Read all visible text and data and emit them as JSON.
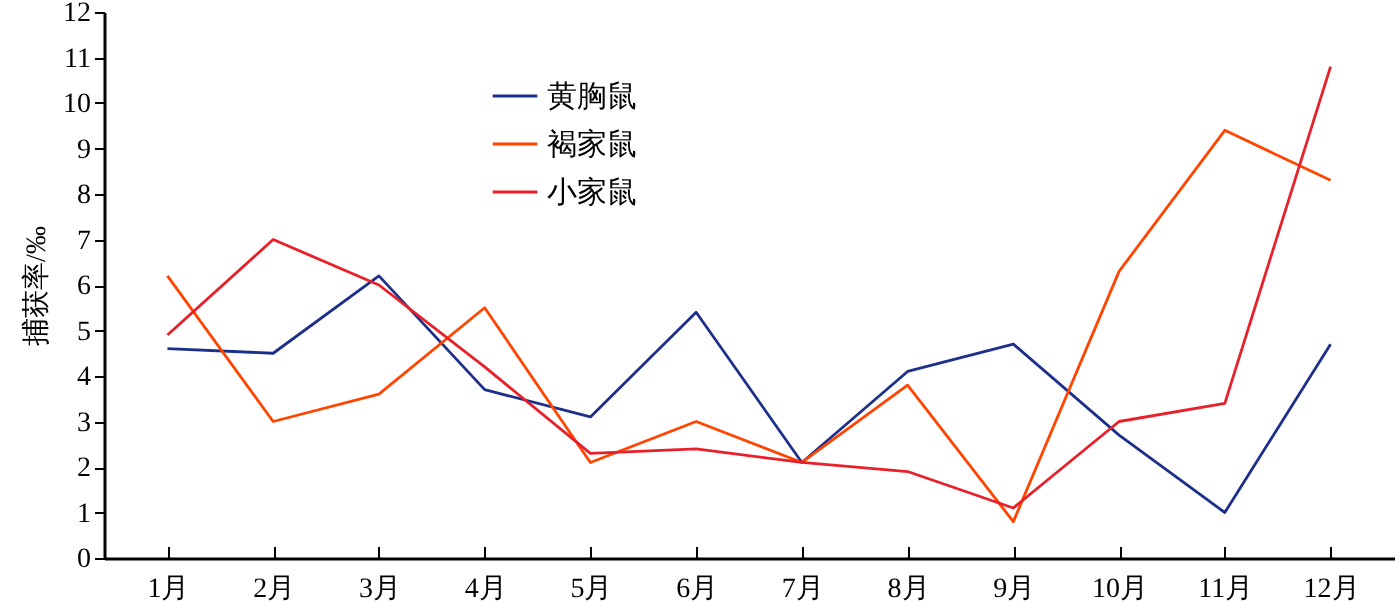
{
  "chart_data": {
    "type": "line",
    "ylabel": "捕获率/‰",
    "categories": [
      "1月",
      "2月",
      "3月",
      "4月",
      "5月",
      "6月",
      "7月",
      "8月",
      "9月",
      "10月",
      "11月",
      "12月"
    ],
    "series": [
      {
        "name": "黄胸鼠",
        "color": "#1c2f8a",
        "values": [
          4.6,
          4.5,
          6.2,
          3.7,
          3.1,
          5.4,
          2.1,
          4.1,
          4.7,
          2.7,
          1.0,
          4.7
        ]
      },
      {
        "name": "褐家鼠",
        "color": "#ff4500",
        "values": [
          6.2,
          3.0,
          3.6,
          5.5,
          2.1,
          3.0,
          2.1,
          3.8,
          0.8,
          6.3,
          9.4,
          8.3
        ]
      },
      {
        "name": "小家鼠",
        "color": "#e8202a",
        "values": [
          4.9,
          7.0,
          6.0,
          4.2,
          2.3,
          2.4,
          2.1,
          1.9,
          1.1,
          3.0,
          3.4,
          10.8
        ]
      }
    ],
    "ylim": [
      0,
      12
    ],
    "yticks": [
      0,
      1,
      2,
      3,
      4,
      5,
      6,
      7,
      8,
      9,
      10,
      11,
      12
    ],
    "grid": false,
    "legend": "top",
    "marker": "none",
    "line_style": "solid"
  }
}
